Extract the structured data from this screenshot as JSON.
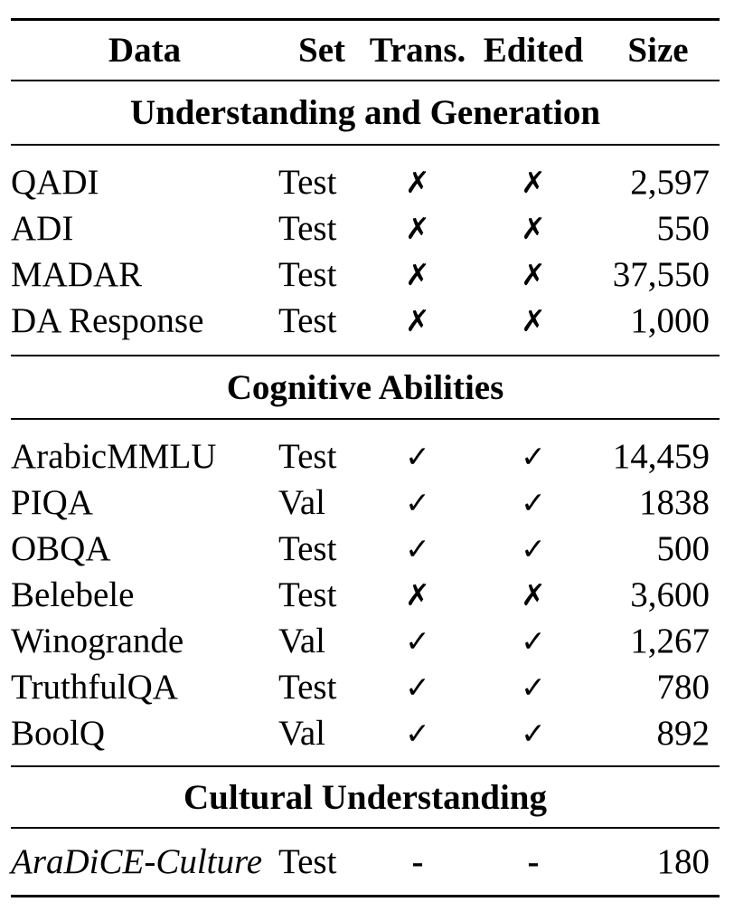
{
  "page": {
    "background_color": "#ffffff",
    "text_color": "#000000",
    "rule_color": "#000000"
  },
  "table": {
    "columns": [
      "Data",
      "Set",
      "Trans.",
      "Edited",
      "Size"
    ],
    "sections": [
      {
        "title": "Understanding and Generation",
        "rows": [
          {
            "data": "QADI",
            "set": "Test",
            "trans": "✗",
            "edited": "✗",
            "size": "2,597"
          },
          {
            "data": "ADI",
            "set": "Test",
            "trans": "✗",
            "edited": "✗",
            "size": "550"
          },
          {
            "data": "MADAR",
            "set": "Test",
            "trans": "✗",
            "edited": "✗",
            "size": "37,550"
          },
          {
            "data": "DA Response",
            "set": "Test",
            "trans": "✗",
            "edited": "✗",
            "size": "1,000"
          }
        ]
      },
      {
        "title": "Cognitive Abilities",
        "rows": [
          {
            "data": "ArabicMMLU",
            "set": "Test",
            "trans": "✓",
            "edited": "✓",
            "size": "14,459"
          },
          {
            "data": "PIQA",
            "set": "Val",
            "trans": "✓",
            "edited": "✓",
            "size": "1838"
          },
          {
            "data": "OBQA",
            "set": "Test",
            "trans": "✓",
            "edited": "✓",
            "size": "500"
          },
          {
            "data": "Belebele",
            "set": "Test",
            "trans": "✗",
            "edited": "✗",
            "size": "3,600"
          },
          {
            "data": "Winogrande",
            "set": "Val",
            "trans": "✓",
            "edited": "✓",
            "size": "1,267"
          },
          {
            "data": "TruthfulQA",
            "set": "Test",
            "trans": "✓",
            "edited": "✓",
            "size": "780"
          },
          {
            "data": "BoolQ",
            "set": "Val",
            "trans": "✓",
            "edited": "✓",
            "size": "892"
          }
        ]
      },
      {
        "title": "Cultural Understanding",
        "rows": [
          {
            "data": "AraDiCE-Culture",
            "set": "Test",
            "trans": "-",
            "edited": "-",
            "size": "180"
          }
        ]
      }
    ]
  }
}
